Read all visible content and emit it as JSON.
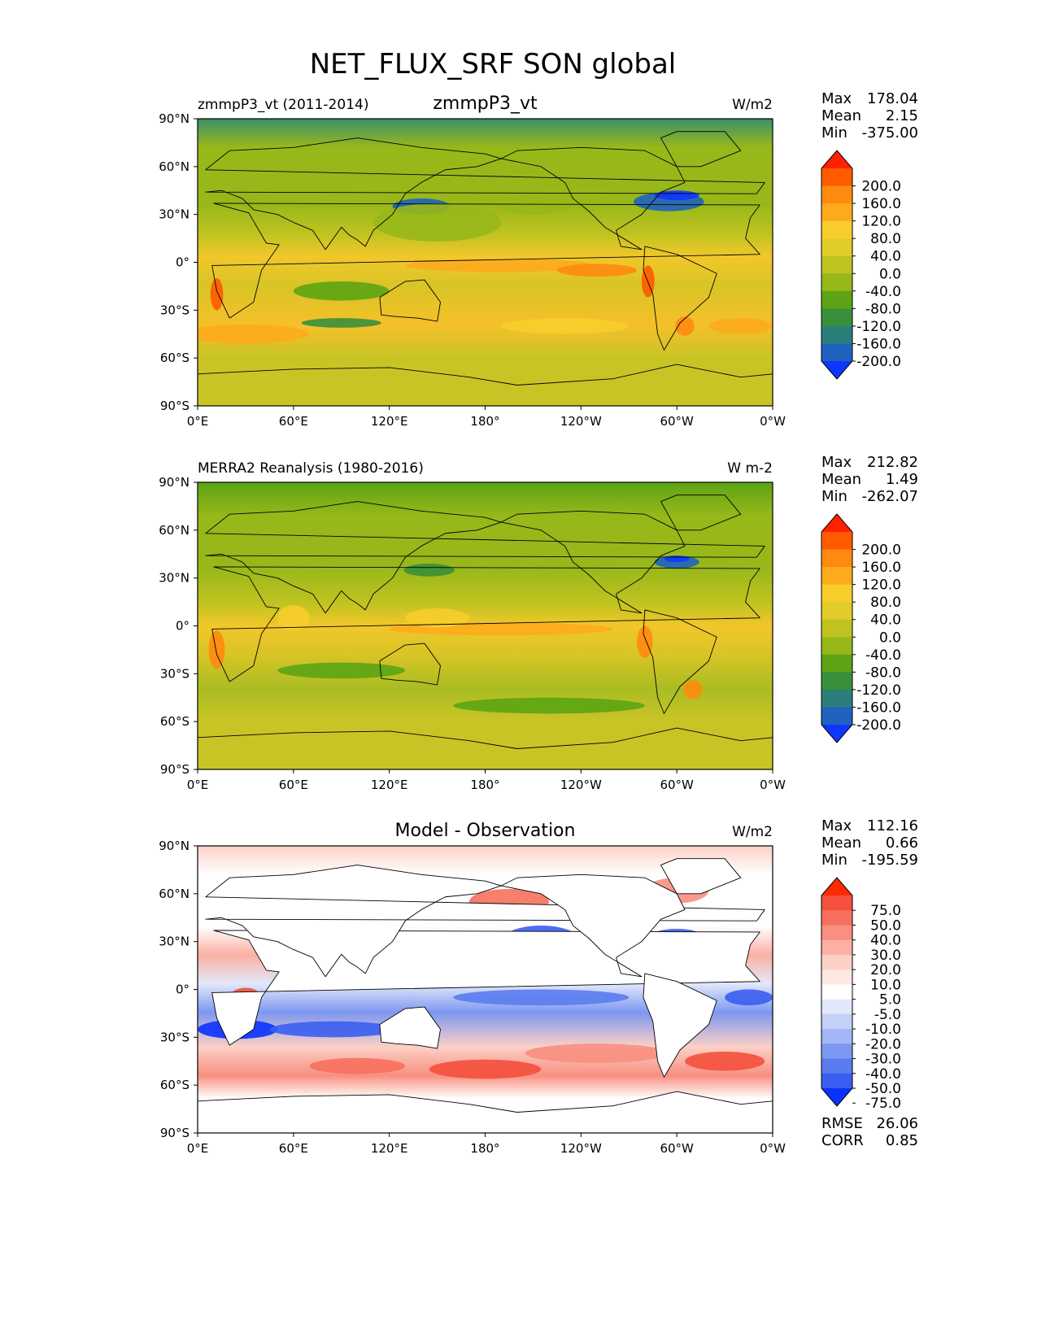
{
  "suptitle": "NET_FLUX_SRF SON global",
  "chart_data": [
    {
      "type": "heatmap",
      "id": "model",
      "title_left": "zmmpP3_vt (2011-2014)",
      "title_center": "zmmpP3_vt",
      "title_right": "W/m2",
      "stats": [
        {
          "label": "Max",
          "value": "178.04"
        },
        {
          "label": "Mean",
          "value": "2.15"
        },
        {
          "label": "Min",
          "value": "-375.00"
        }
      ],
      "xticks": [
        "0°E",
        "60°E",
        "120°E",
        "180°",
        "120°W",
        "60°W",
        "0°W"
      ],
      "yticks": [
        "90°N",
        "60°N",
        "30°N",
        "0°",
        "30°S",
        "60°S",
        "90°S"
      ],
      "xlim": [
        0,
        360
      ],
      "ylim": [
        -90,
        90
      ],
      "colorbar": {
        "labels": [
          "200.0",
          "160.0",
          "120.0",
          "80.0",
          "40.0",
          "0.0",
          "-40.0",
          "-80.0",
          "-120.0",
          "-160.0",
          "-200.0"
        ],
        "colors": [
          "#ff2200",
          "#ff5a00",
          "#ff8a10",
          "#fdab1c",
          "#f7cd2b",
          "#e2cc2a",
          "#bfc320",
          "#98b81a",
          "#5ca414",
          "#3a8f3a",
          "#2b7f7a",
          "#1f63be",
          "#0e36ff"
        ]
      }
    },
    {
      "type": "heatmap",
      "id": "obs",
      "title_left": "MERRA2 Reanalysis (1980-2016)",
      "title_center": "",
      "title_right": "W m-2",
      "stats": [
        {
          "label": "Max",
          "value": "212.82"
        },
        {
          "label": "Mean",
          "value": "1.49"
        },
        {
          "label": "Min",
          "value": "-262.07"
        }
      ],
      "xticks": [
        "0°E",
        "60°E",
        "120°E",
        "180°",
        "120°W",
        "60°W",
        "0°W"
      ],
      "yticks": [
        "90°N",
        "60°N",
        "30°N",
        "0°",
        "30°S",
        "60°S",
        "90°S"
      ],
      "xlim": [
        0,
        360
      ],
      "ylim": [
        -90,
        90
      ],
      "colorbar": {
        "labels": [
          "200.0",
          "160.0",
          "120.0",
          "80.0",
          "40.0",
          "0.0",
          "-40.0",
          "-80.0",
          "-120.0",
          "-160.0",
          "-200.0"
        ],
        "colors": [
          "#ff2200",
          "#ff5a00",
          "#ff8a10",
          "#fdab1c",
          "#f7cd2b",
          "#e2cc2a",
          "#bfc320",
          "#98b81a",
          "#5ca414",
          "#3a8f3a",
          "#2b7f7a",
          "#1f63be",
          "#0e36ff"
        ]
      }
    },
    {
      "type": "heatmap",
      "id": "diff",
      "title_left": "",
      "title_center": "Model - Observation",
      "title_right": "W/m2",
      "stats": [
        {
          "label": "Max",
          "value": "112.16"
        },
        {
          "label": "Mean",
          "value": "0.66"
        },
        {
          "label": "Min",
          "value": "-195.59"
        }
      ],
      "extra_stats": [
        {
          "label": "RMSE",
          "value": "26.06"
        },
        {
          "label": "CORR",
          "value": "0.85"
        }
      ],
      "xticks": [
        "0°E",
        "60°E",
        "120°E",
        "180°",
        "120°W",
        "60°W",
        "0°W"
      ],
      "yticks": [
        "90°N",
        "60°N",
        "30°N",
        "0°",
        "30°S",
        "60°S",
        "90°S"
      ],
      "xlim": [
        0,
        360
      ],
      "ylim": [
        -90,
        90
      ],
      "colorbar": {
        "labels": [
          "75.0",
          "50.0",
          "40.0",
          "30.0",
          "20.0",
          "10.0",
          "5.0",
          "-5.0",
          "-10.0",
          "-20.0",
          "-30.0",
          "-40.0",
          "-50.0",
          "-75.0"
        ],
        "colors": [
          "#ff2a00",
          "#f4503d",
          "#f7705e",
          "#f88f80",
          "#fab0a3",
          "#fcd0c6",
          "#fde8e2",
          "#ffffff",
          "#e2e8fb",
          "#c3d0f8",
          "#a2b6f5",
          "#7d98f1",
          "#5a7cee",
          "#3a5ef0",
          "#0a32ff"
        ]
      }
    }
  ]
}
